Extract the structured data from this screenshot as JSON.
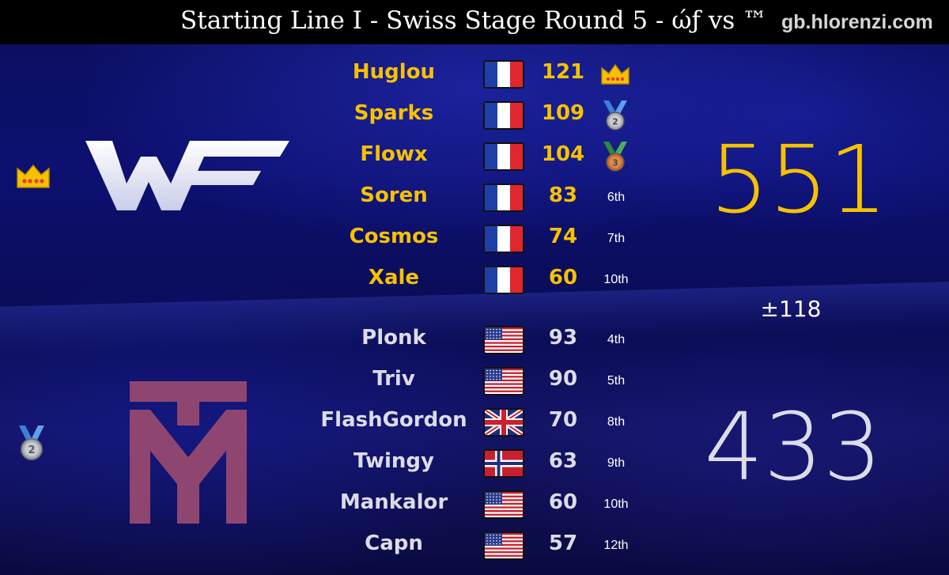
{
  "header": {
    "title": "Starting Line I - Swiss Stage Round 5 - ώƒ vs ™",
    "watermark": "gb.hlorenzi.com"
  },
  "teams": [
    {
      "logo_icon": "wf-logo-icon",
      "placement_icon": "crown-icon",
      "total": "551",
      "color": "#f6c200",
      "players": [
        {
          "name": "Huglou",
          "flag_icon": "flag-france-icon",
          "score": "121",
          "rank": "",
          "rank_icon": "crown-icon"
        },
        {
          "name": "Sparks",
          "flag_icon": "flag-france-icon",
          "score": "109",
          "rank": "",
          "rank_icon": "silver-medal-icon"
        },
        {
          "name": "Flowx",
          "flag_icon": "flag-france-icon",
          "score": "104",
          "rank": "",
          "rank_icon": "bronze-medal-icon"
        },
        {
          "name": "Soren",
          "flag_icon": "flag-france-icon",
          "score": "83",
          "rank": "6th"
        },
        {
          "name": "Cosmos",
          "flag_icon": "flag-france-icon",
          "score": "74",
          "rank": "7th"
        },
        {
          "name": "Xale",
          "flag_icon": "flag-france-icon",
          "score": "60",
          "rank": "10th"
        }
      ]
    },
    {
      "logo_icon": "tm-logo-icon",
      "placement_icon": "silver-medal-icon",
      "total": "433",
      "color": "#dcdce8",
      "players": [
        {
          "name": "Plonk",
          "flag_icon": "flag-usa-icon",
          "score": "93",
          "rank": "4th"
        },
        {
          "name": "Triv",
          "flag_icon": "flag-usa-icon",
          "score": "90",
          "rank": "5th"
        },
        {
          "name": "FlashGordon",
          "flag_icon": "flag-uk-icon",
          "score": "70",
          "rank": "8th"
        },
        {
          "name": "Twingy",
          "flag_icon": "flag-norway-icon",
          "score": "63",
          "rank": "9th"
        },
        {
          "name": "Mankalor",
          "flag_icon": "flag-usa-icon",
          "score": "60",
          "rank": "10th"
        },
        {
          "name": "Capn",
          "flag_icon": "flag-usa-icon",
          "score": "57",
          "rank": "12th"
        }
      ]
    }
  ],
  "difference": "±118"
}
